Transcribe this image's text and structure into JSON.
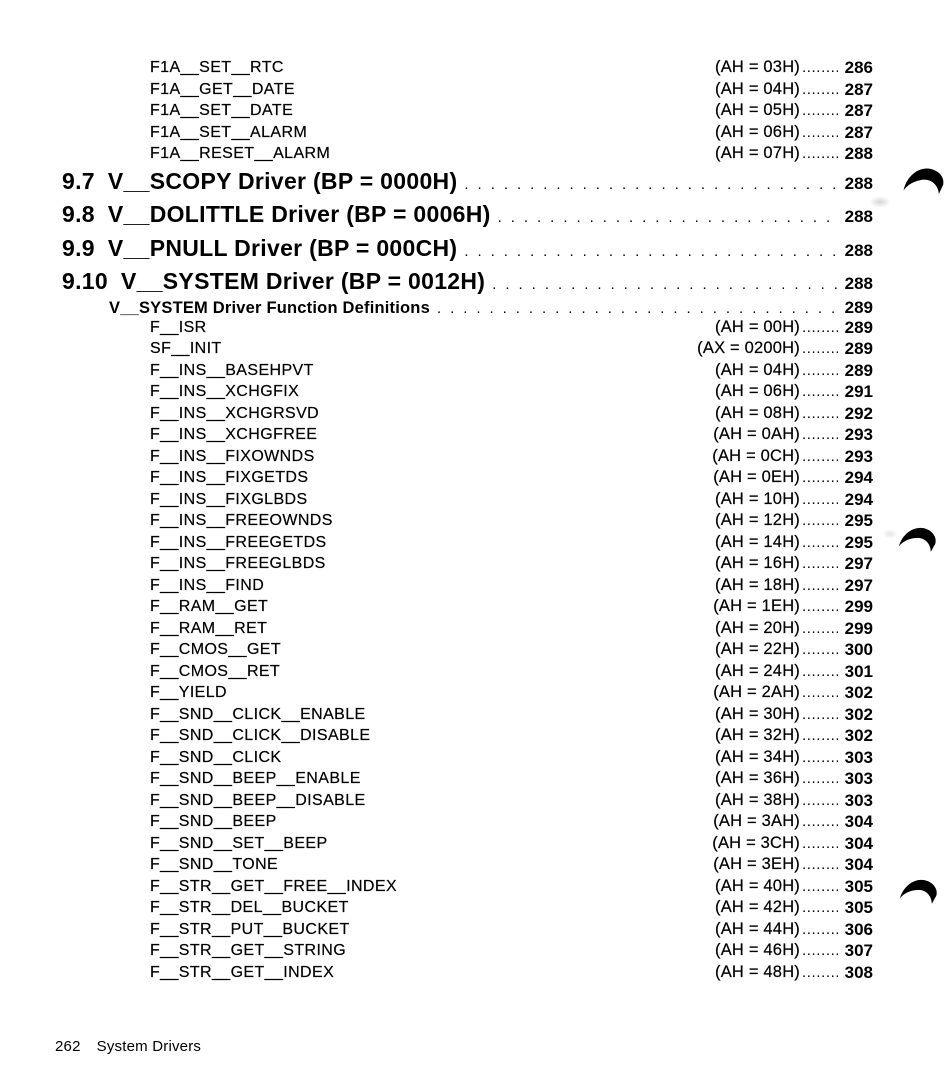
{
  "document": {
    "footer": {
      "page_number": "262",
      "footer_title": "System Drivers"
    },
    "toc_entries": [
      {
        "kind": "function",
        "name": "F1A__SET__RTC",
        "register": "(AH = 03H)",
        "page": "286"
      },
      {
        "kind": "function",
        "name": "F1A__GET__DATE",
        "register": "(AH = 04H)",
        "page": "287"
      },
      {
        "kind": "function",
        "name": "F1A__SET__DATE",
        "register": "(AH = 05H)",
        "page": "287"
      },
      {
        "kind": "function",
        "name": "F1A__SET__ALARM",
        "register": "(AH = 06H)",
        "page": "287"
      },
      {
        "kind": "function",
        "name": "F1A__RESET__ALARM",
        "register": "(AH = 07H)",
        "page": "288"
      },
      {
        "kind": "section",
        "number": "9.7",
        "title": "V__SCOPY Driver (BP = 0000H)",
        "page": "288"
      },
      {
        "kind": "section",
        "number": "9.8",
        "title": "V__DOLITTLE Driver (BP = 0006H)",
        "page": "288"
      },
      {
        "kind": "section",
        "number": "9.9",
        "title": "V__PNULL Driver (BP = 000CH)",
        "page": "288"
      },
      {
        "kind": "section",
        "number": "9.10",
        "title": "V__SYSTEM Driver (BP = 0012H)",
        "page": "288"
      },
      {
        "kind": "subsection",
        "title": "V__SYSTEM Driver Function Definitions",
        "page": "289"
      },
      {
        "kind": "function",
        "name": "F__ISR",
        "register": "(AH = 00H)",
        "page": "289"
      },
      {
        "kind": "function",
        "name": "SF__INIT",
        "register": "(AX = 0200H)",
        "page": "289"
      },
      {
        "kind": "function",
        "name": "F__INS__BASEHPVT",
        "register": "(AH = 04H)",
        "page": "289"
      },
      {
        "kind": "function",
        "name": "F__INS__XCHGFIX",
        "register": "(AH = 06H)",
        "page": "291"
      },
      {
        "kind": "function",
        "name": "F__INS__XCHGRSVD",
        "register": "(AH = 08H)",
        "page": "292"
      },
      {
        "kind": "function",
        "name": "F__INS__XCHGFREE",
        "register": "(AH = 0AH)",
        "page": "293"
      },
      {
        "kind": "function",
        "name": "F__INS__FIXOWNDS",
        "register": "(AH = 0CH)",
        "page": "293"
      },
      {
        "kind": "function",
        "name": "F__INS__FIXGETDS",
        "register": "(AH = 0EH)",
        "page": "294"
      },
      {
        "kind": "function",
        "name": "F__INS__FIXGLBDS",
        "register": "(AH = 10H)",
        "page": "294"
      },
      {
        "kind": "function",
        "name": "F__INS__FREEOWNDS",
        "register": "(AH = 12H)",
        "page": "295"
      },
      {
        "kind": "function",
        "name": "F__INS__FREEGETDS",
        "register": "(AH = 14H)",
        "page": "295"
      },
      {
        "kind": "function",
        "name": "F__INS__FREEGLBDS",
        "register": "(AH = 16H)",
        "page": "297"
      },
      {
        "kind": "function",
        "name": "F__INS__FIND",
        "register": "(AH = 18H)",
        "page": "297"
      },
      {
        "kind": "function",
        "name": "F__RAM__GET",
        "register": "(AH = 1EH)",
        "page": "299"
      },
      {
        "kind": "function",
        "name": "F__RAM__RET",
        "register": "(AH = 20H)",
        "page": "299"
      },
      {
        "kind": "function",
        "name": "F__CMOS__GET",
        "register": "(AH = 22H)",
        "page": "300"
      },
      {
        "kind": "function",
        "name": "F__CMOS__RET",
        "register": "(AH = 24H)",
        "page": "301"
      },
      {
        "kind": "function",
        "name": "F__YIELD",
        "register": "(AH = 2AH)",
        "page": "302"
      },
      {
        "kind": "function",
        "name": "F__SND__CLICK__ENABLE",
        "register": "(AH = 30H)",
        "page": "302"
      },
      {
        "kind": "function",
        "name": "F__SND__CLICK__DISABLE",
        "register": "(AH = 32H)",
        "page": "302"
      },
      {
        "kind": "function",
        "name": "F__SND__CLICK",
        "register": "(AH = 34H)",
        "page": "303"
      },
      {
        "kind": "function",
        "name": "F__SND__BEEP__ENABLE",
        "register": "(AH = 36H)",
        "page": "303"
      },
      {
        "kind": "function",
        "name": "F__SND__BEEP__DISABLE",
        "register": "(AH = 38H)",
        "page": "303"
      },
      {
        "kind": "function",
        "name": "F__SND__BEEP",
        "register": "(AH = 3AH)",
        "page": "304"
      },
      {
        "kind": "function",
        "name": "F__SND__SET__BEEP",
        "register": "(AH = 3CH)",
        "page": "304"
      },
      {
        "kind": "function",
        "name": "F__SND__TONE",
        "register": "(AH = 3EH)",
        "page": "304"
      },
      {
        "kind": "function",
        "name": "F__STR__GET__FREE__INDEX",
        "register": "(AH = 40H)",
        "page": "305"
      },
      {
        "kind": "function",
        "name": "F__STR__DEL__BUCKET",
        "register": "(AH = 42H)",
        "page": "305"
      },
      {
        "kind": "function",
        "name": "F__STR__PUT__BUCKET",
        "register": "(AH = 44H)",
        "page": "306"
      },
      {
        "kind": "function",
        "name": "F__STR__GET__STRING",
        "register": "(AH = 46H)",
        "page": "307"
      },
      {
        "kind": "function",
        "name": "F__STR__GET__INDEX",
        "register": "(AH = 48H)",
        "page": "308"
      }
    ]
  }
}
